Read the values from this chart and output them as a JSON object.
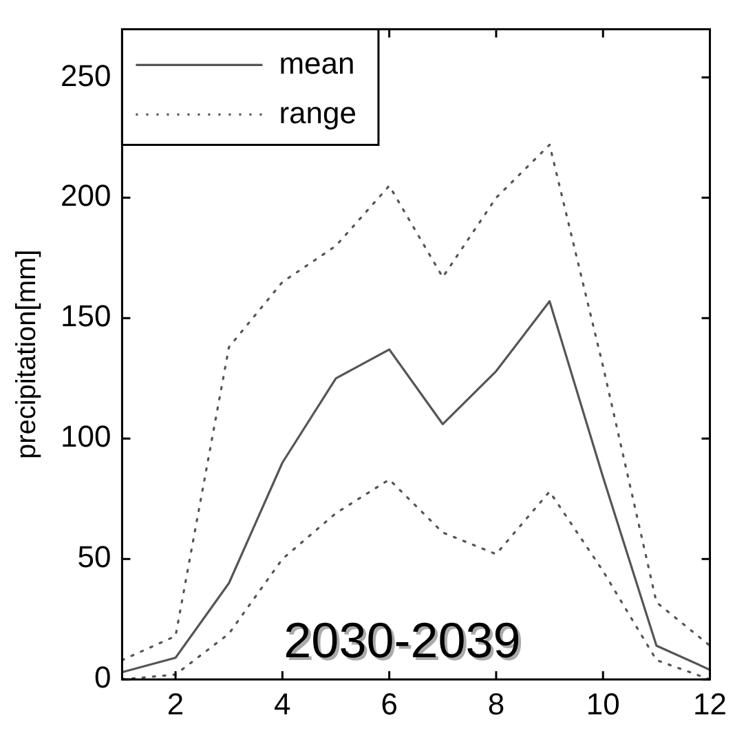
{
  "chart_data": {
    "type": "line",
    "ylabel": "precipitation[mm]",
    "x": [
      1,
      2,
      3,
      4,
      5,
      6,
      7,
      8,
      9,
      10,
      11,
      12
    ],
    "series": [
      {
        "name": "mean",
        "color": "#555555",
        "line_style": "solid",
        "values": [
          3,
          9,
          40,
          90,
          125,
          137,
          106,
          128,
          157,
          84,
          14,
          4
        ]
      },
      {
        "name": "range",
        "color": "#555555",
        "line_style": "dotted",
        "values": [
          8,
          18,
          138,
          165,
          180,
          205,
          167,
          200,
          222,
          130,
          32,
          14
        ]
      },
      {
        "color": "#555555",
        "line_style": "dotted",
        "values": [
          0,
          2,
          19,
          50,
          69,
          83,
          61,
          52,
          78,
          45,
          8,
          0
        ]
      }
    ],
    "xlim": [
      1,
      12
    ],
    "xticks": [
      2,
      4,
      6,
      8,
      10,
      12
    ],
    "ylim": [
      0,
      270
    ],
    "yticks": [
      0,
      50,
      100,
      150,
      200,
      250
    ],
    "grid": false,
    "legend": "top left",
    "marker": "none",
    "annotations": [
      "2030-2039"
    ]
  }
}
